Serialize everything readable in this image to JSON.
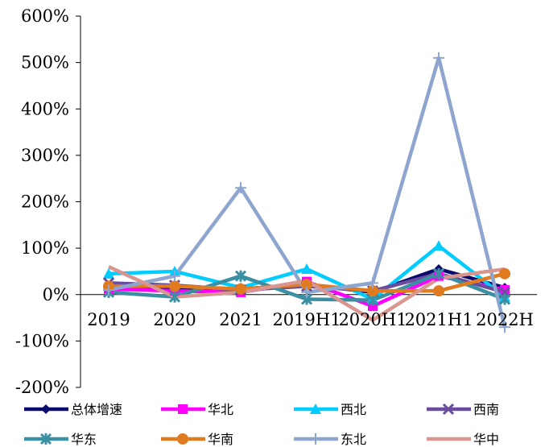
{
  "chart_data": {
    "type": "line",
    "title": "",
    "xlabel": "",
    "ylabel": "",
    "categories": [
      "2019",
      "2020",
      "2021",
      "2019H1",
      "2020H1",
      "2021H1",
      "2022H"
    ],
    "ylim": [
      -200,
      600
    ],
    "yticks": [
      -200,
      -100,
      0,
      100,
      200,
      300,
      400,
      500,
      600
    ],
    "ytick_labels": [
      "-200%",
      "-100%",
      "0%",
      "100%",
      "200%",
      "300%",
      "400%",
      "500%",
      "600%"
    ],
    "grid": false,
    "legend_position": "bottom",
    "series": [
      {
        "name": "总体增速",
        "color": "#0a0a6e",
        "marker": "diamond",
        "values": [
          18,
          15,
          12,
          22,
          5,
          55,
          15
        ]
      },
      {
        "name": "华北",
        "color": "#ff00ff",
        "marker": "square",
        "values": [
          12,
          8,
          5,
          28,
          -25,
          40,
          10
        ]
      },
      {
        "name": "西北",
        "color": "#00ccff",
        "marker": "triangle",
        "values": [
          45,
          50,
          15,
          55,
          -10,
          105,
          -5
        ]
      },
      {
        "name": "西南",
        "color": "#6a4c9c",
        "marker": "x",
        "values": [
          25,
          20,
          10,
          18,
          8,
          45,
          5
        ]
      },
      {
        "name": "华东",
        "color": "#3a8fa3",
        "marker": "asterisk",
        "values": [
          5,
          -5,
          40,
          -10,
          -12,
          45,
          -10
        ]
      },
      {
        "name": "华南",
        "color": "#e07b20",
        "marker": "circle",
        "values": [
          18,
          18,
          12,
          22,
          8,
          8,
          45
        ]
      },
      {
        "name": "东北",
        "color": "#8ea5cf",
        "marker": "plus",
        "values": [
          10,
          40,
          230,
          5,
          25,
          510,
          -70
        ]
      },
      {
        "name": "华中",
        "color": "#d9958f",
        "marker": "none",
        "values": [
          60,
          -5,
          5,
          30,
          -55,
          35,
          55
        ]
      }
    ]
  }
}
